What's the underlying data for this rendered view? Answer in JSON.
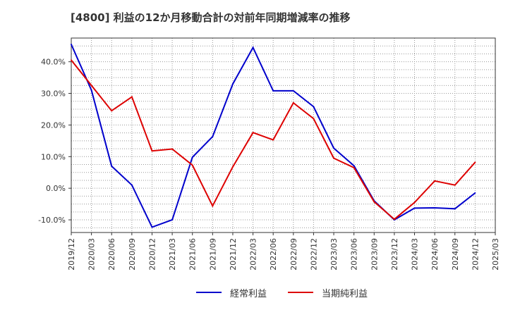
{
  "chart_data": {
    "type": "line",
    "title": "[4800]  利益の12か月移動合計の対前年同期増減率の推移",
    "xlabel": "",
    "ylabel": "",
    "categories": [
      "2019/12",
      "2020/03",
      "2020/06",
      "2020/09",
      "2020/12",
      "2021/03",
      "2021/06",
      "2021/09",
      "2021/12",
      "2022/03",
      "2022/06",
      "2022/09",
      "2022/12",
      "2023/03",
      "2023/06",
      "2023/09",
      "2023/12",
      "2024/03",
      "2024/06",
      "2024/09",
      "2024/12",
      "2025/03"
    ],
    "y_ticks": [
      "40.0%",
      "30.0%",
      "20.0%",
      "10.0%",
      "0.0%",
      "-10.0%"
    ],
    "y_tick_values": [
      40,
      30,
      20,
      10,
      0,
      -10
    ],
    "ylim": [
      -14,
      47.5
    ],
    "grid": true,
    "legend_position": "bottom",
    "series": [
      {
        "name": "経常利益",
        "color": "#0000cc",
        "values": [
          45.5,
          31.0,
          7.0,
          1.0,
          -12.3,
          -10.0,
          9.8,
          16.3,
          33.0,
          44.5,
          30.8,
          30.8,
          25.8,
          12.7,
          7.1,
          -4.0,
          -10.0,
          -6.3,
          -6.2,
          -6.5,
          -1.5,
          null
        ]
      },
      {
        "name": "当期純利益",
        "color": "#dd0000",
        "values": [
          40.5,
          32.5,
          24.5,
          28.9,
          11.8,
          12.4,
          7.3,
          -5.6,
          6.8,
          17.6,
          15.3,
          27.0,
          22.0,
          9.5,
          6.5,
          -4.3,
          -9.8,
          -4.5,
          2.3,
          1.0,
          8.2,
          null
        ]
      }
    ]
  }
}
